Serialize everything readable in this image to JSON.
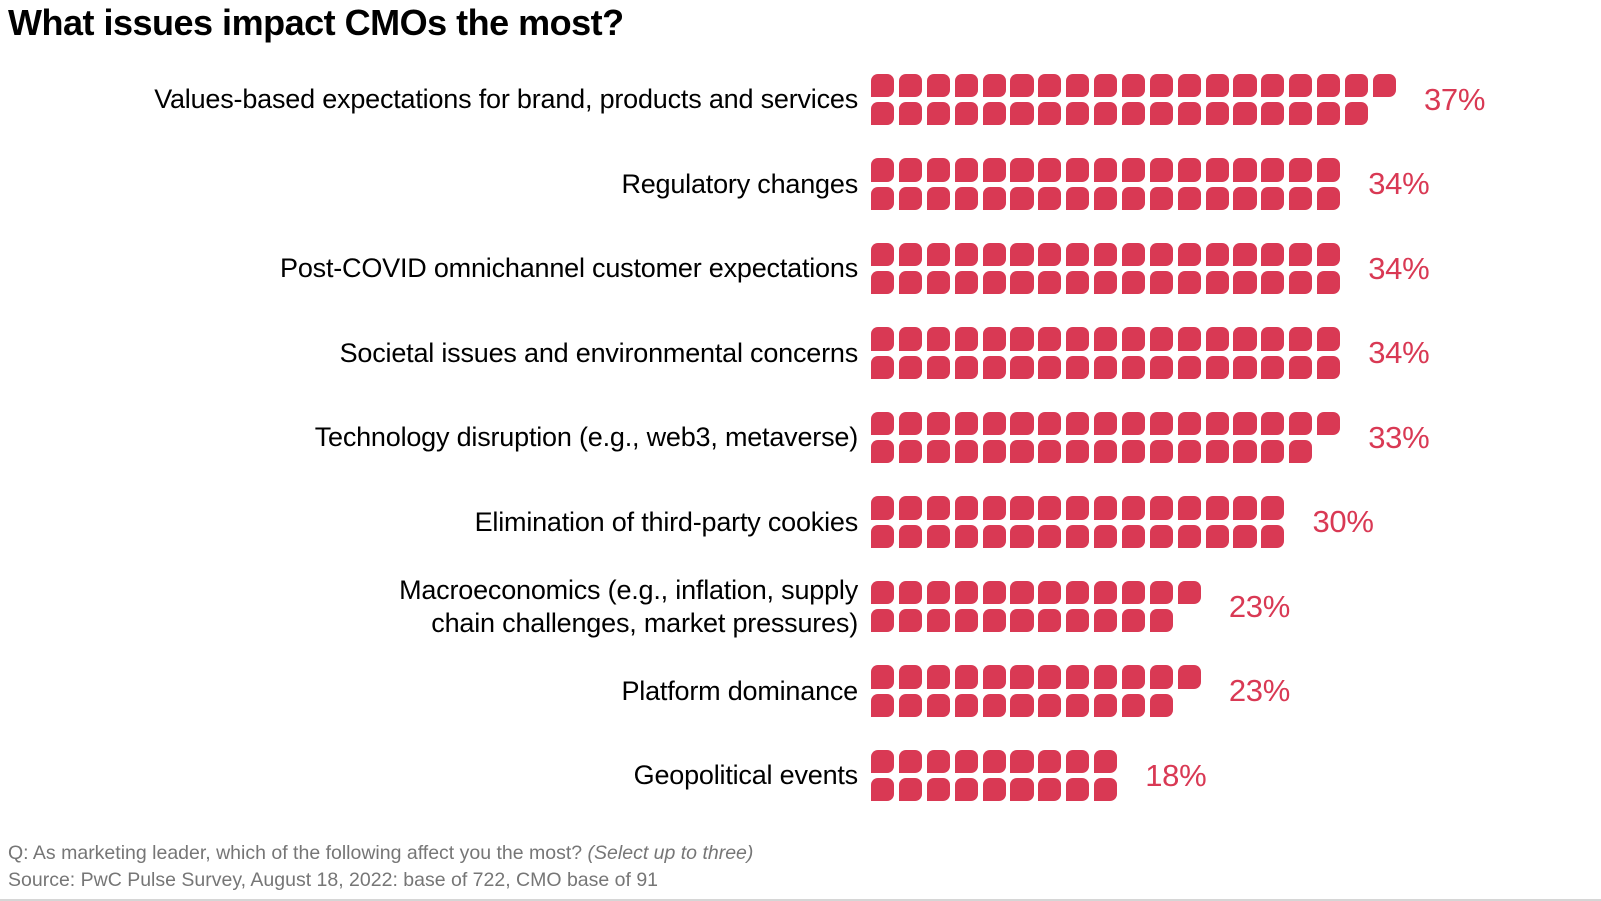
{
  "title": "What issues impact CMOs the most?",
  "colors": {
    "accent": "#d93954",
    "label_text": "#000000",
    "footnote_text": "#767676",
    "background": "#ffffff",
    "bottom_rule": "#d6d6d6"
  },
  "chart_data": {
    "type": "pictogram_bar",
    "title": "What issues impact CMOs the most?",
    "unit": "1 square = 1 percent",
    "rows_of_squares_per_category": 2,
    "categories": [
      "Values-based expectations for brand, products and services",
      "Regulatory changes",
      "Post-COVID omnichannel customer expectations",
      "Societal issues and environmental concerns",
      "Technology disruption (e.g., web3, metaverse)",
      "Elimination of third-party cookies",
      "Macroeconomics (e.g., inflation, supply\nchain challenges, market pressures)",
      "Platform dominance",
      "Geopolitical events"
    ],
    "values": [
      37,
      34,
      34,
      34,
      33,
      30,
      23,
      23,
      18
    ],
    "value_labels": [
      "37%",
      "34%",
      "34%",
      "34%",
      "33%",
      "30%",
      "23%",
      "23%",
      "18%"
    ],
    "squares_top_row": [
      19,
      17,
      17,
      17,
      17,
      15,
      12,
      12,
      9
    ],
    "squares_bottom_row": [
      18,
      17,
      17,
      17,
      16,
      15,
      11,
      11,
      9
    ],
    "xlim": [
      0,
      40
    ],
    "grid": false,
    "legend_position": "none"
  },
  "footnote": {
    "question_prefix": "Q: As marketing leader, which of the following affect you the most? ",
    "question_italic": "(Select up to three)",
    "source": "Source: PwC Pulse Survey, August 18, 2022: base of 722, CMO base of 91"
  }
}
